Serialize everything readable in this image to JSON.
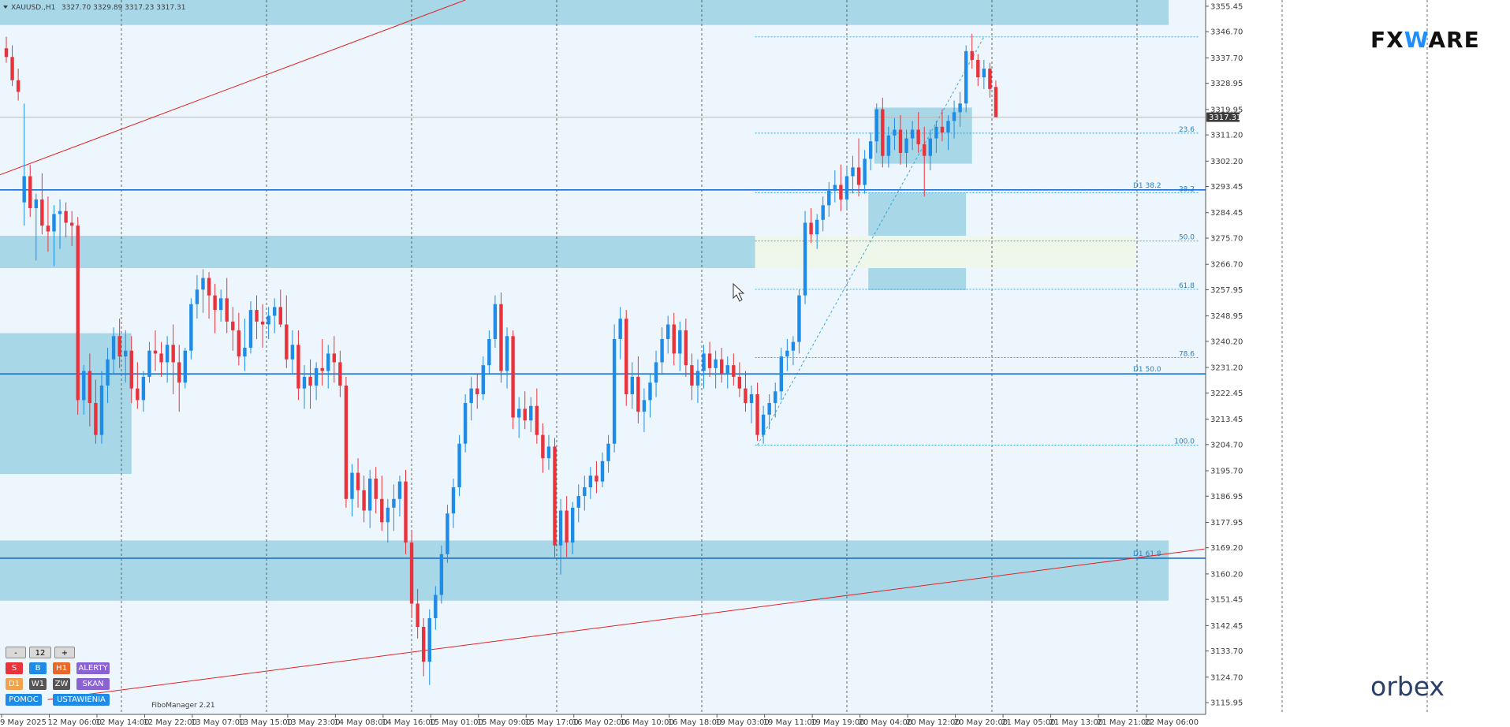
{
  "header": {
    "symbol": "XAUUSD.,H1",
    "ohlc": "3327.70 3329.89 3317.23 3317.31"
  },
  "colors": {
    "background": "#eef6fd",
    "zone": "#a8d7e8",
    "zone_light": "#eef7ea",
    "bull": "#1e8ce6",
    "bear": "#e8323c",
    "level": "#1a6fd0",
    "trend": "#e32222",
    "grid": "#444444"
  },
  "icons": {
    "collapse": "triangle-down-icon",
    "cursor": "mouse-cursor-icon"
  },
  "logos": {
    "fxware_pre": "FX",
    "fxware_w": "W",
    "fxware_post": "ARE",
    "orbex": "orbex"
  },
  "indicator": {
    "name": "FiboManager 2.21"
  },
  "panel": {
    "minus": "-",
    "period_value": "12",
    "plus": "+",
    "row1": [
      {
        "label": "S",
        "color": "#e8323c"
      },
      {
        "label": "B",
        "color": "#1e8ce6"
      },
      {
        "label": "H1",
        "color": "#e8682a"
      },
      {
        "label": "ALERTY",
        "color": "#8a63d2"
      }
    ],
    "row2": [
      {
        "label": "D1",
        "color": "#f2a24a"
      },
      {
        "label": "W1",
        "color": "#555555"
      },
      {
        "label": "ZW",
        "color": "#555555"
      },
      {
        "label": "SKAN",
        "color": "#8a63d2"
      }
    ],
    "row3": [
      {
        "label": "POMOC",
        "color": "#1e8ce6"
      },
      {
        "label": "USTAWIENIA",
        "color": "#1e8ce6"
      }
    ]
  },
  "chart_data": {
    "type": "candlestick",
    "ylim": [
      3111.9,
      3357.6
    ],
    "y_ticks": [
      "3355.45",
      "3346.70",
      "3337.70",
      "3328.95",
      "3319.95",
      "3311.20",
      "3302.20",
      "3293.45",
      "3284.45",
      "3275.70",
      "3266.70",
      "3257.95",
      "3248.95",
      "3240.20",
      "3231.20",
      "3222.45",
      "3213.45",
      "3204.70",
      "3195.70",
      "3186.95",
      "3177.95",
      "3169.20",
      "3160.20",
      "3151.45",
      "3142.45",
      "3133.70",
      "3124.70",
      "3115.95"
    ],
    "current_price": "3317.31",
    "x_ticks": [
      "9 May 2025",
      "12 May 06:00",
      "12 May 14:00",
      "12 May 22:00",
      "13 May 07:00",
      "13 May 15:00",
      "13 May 23:00",
      "14 May 08:00",
      "14 May 16:00",
      "15 May 01:00",
      "15 May 09:00",
      "15 May 17:00",
      "16 May 02:00",
      "16 May 10:00",
      "16 May 18:00",
      "19 May 03:00",
      "19 May 11:00",
      "19 May 19:00",
      "20 May 04:00",
      "20 May 12:00",
      "20 May 20:00",
      "21 May 05:00",
      "21 May 13:00",
      "21 May 21:00",
      "22 May 06:00"
    ],
    "x_tick_index": [
      0,
      8,
      16,
      24,
      32,
      40,
      48,
      56,
      64,
      72,
      80,
      88,
      96,
      104,
      112,
      120,
      128,
      136,
      144,
      152,
      160,
      168,
      176,
      184,
      192
    ],
    "candles": [
      [
        3341,
        3345,
        3336,
        3338
      ],
      [
        3338,
        3342,
        3328,
        3330
      ],
      [
        3330,
        3334,
        3323,
        3326
      ],
      [
        3288,
        3322,
        3280,
        3297
      ],
      [
        3297,
        3301,
        3283,
        3286
      ],
      [
        3286,
        3291,
        3268,
        3289
      ],
      [
        3289,
        3298,
        3277,
        3280
      ],
      [
        3280,
        3290,
        3271,
        3278
      ],
      [
        3278,
        3287,
        3266,
        3284
      ],
      [
        3284,
        3289,
        3272,
        3285
      ],
      [
        3285,
        3288,
        3276,
        3281
      ],
      [
        3281,
        3285,
        3273,
        3280
      ],
      [
        3280,
        3283,
        3215,
        3220
      ],
      [
        3220,
        3232,
        3215,
        3230
      ],
      [
        3230,
        3236,
        3211,
        3219
      ],
      [
        3219,
        3227,
        3205,
        3208
      ],
      [
        3208,
        3230,
        3205,
        3225
      ],
      [
        3225,
        3238,
        3219,
        3234
      ],
      [
        3234,
        3245,
        3229,
        3242
      ],
      [
        3242,
        3248,
        3231,
        3235
      ],
      [
        3235,
        3244,
        3226,
        3237
      ],
      [
        3237,
        3242,
        3219,
        3224
      ],
      [
        3224,
        3233,
        3217,
        3220
      ],
      [
        3220,
        3230,
        3216,
        3228
      ],
      [
        3228,
        3240,
        3226,
        3237
      ],
      [
        3237,
        3244,
        3230,
        3236
      ],
      [
        3236,
        3240,
        3228,
        3233
      ],
      [
        3233,
        3242,
        3226,
        3239
      ],
      [
        3239,
        3246,
        3222,
        3233
      ],
      [
        3233,
        3239,
        3216,
        3226
      ],
      [
        3226,
        3238,
        3224,
        3237
      ],
      [
        3237,
        3255,
        3234,
        3253
      ],
      [
        3253,
        3263,
        3248,
        3258
      ],
      [
        3258,
        3265,
        3250,
        3262
      ],
      [
        3262,
        3264,
        3248,
        3256
      ],
      [
        3256,
        3260,
        3243,
        3251
      ],
      [
        3251,
        3258,
        3247,
        3255
      ],
      [
        3255,
        3262,
        3243,
        3247
      ],
      [
        3247,
        3252,
        3237,
        3244
      ],
      [
        3244,
        3250,
        3232,
        3235
      ],
      [
        3235,
        3248,
        3230,
        3238
      ],
      [
        3238,
        3254,
        3236,
        3251
      ],
      [
        3251,
        3256,
        3241,
        3247
      ],
      [
        3247,
        3253,
        3238,
        3246
      ],
      [
        3246,
        3252,
        3241,
        3249
      ],
      [
        3249,
        3255,
        3243,
        3252
      ],
      [
        3252,
        3258,
        3245,
        3246
      ],
      [
        3246,
        3256,
        3231,
        3234
      ],
      [
        3234,
        3244,
        3229,
        3239
      ],
      [
        3239,
        3244,
        3220,
        3224
      ],
      [
        3224,
        3232,
        3217,
        3228
      ],
      [
        3228,
        3234,
        3217,
        3225
      ],
      [
        3225,
        3233,
        3220,
        3231
      ],
      [
        3231,
        3241,
        3225,
        3230
      ],
      [
        3230,
        3239,
        3224,
        3236
      ],
      [
        3236,
        3242,
        3226,
        3233
      ],
      [
        3233,
        3237,
        3221,
        3225
      ],
      [
        3225,
        3228,
        3183,
        3186
      ],
      [
        3186,
        3198,
        3180,
        3195
      ],
      [
        3195,
        3200,
        3183,
        3189
      ],
      [
        3189,
        3194,
        3178,
        3182
      ],
      [
        3182,
        3196,
        3176,
        3193
      ],
      [
        3193,
        3197,
        3181,
        3186
      ],
      [
        3186,
        3194,
        3175,
        3178
      ],
      [
        3178,
        3186,
        3171,
        3183
      ],
      [
        3183,
        3191,
        3175,
        3186
      ],
      [
        3186,
        3194,
        3180,
        3192
      ],
      [
        3192,
        3196,
        3167,
        3171
      ],
      [
        3171,
        3175,
        3145,
        3150
      ],
      [
        3150,
        3155,
        3138,
        3142
      ],
      [
        3142,
        3145,
        3125,
        3130
      ],
      [
        3130,
        3148,
        3122,
        3145
      ],
      [
        3145,
        3156,
        3141,
        3153
      ],
      [
        3153,
        3170,
        3150,
        3167
      ],
      [
        3167,
        3184,
        3164,
        3181
      ],
      [
        3181,
        3193,
        3176,
        3190
      ],
      [
        3190,
        3208,
        3187,
        3205
      ],
      [
        3205,
        3222,
        3202,
        3219
      ],
      [
        3219,
        3228,
        3213,
        3224
      ],
      [
        3224,
        3229,
        3217,
        3222
      ],
      [
        3222,
        3235,
        3220,
        3232
      ],
      [
        3232,
        3244,
        3229,
        3241
      ],
      [
        3241,
        3256,
        3238,
        3253
      ],
      [
        3253,
        3257,
        3226,
        3230
      ],
      [
        3230,
        3245,
        3224,
        3242
      ],
      [
        3242,
        3244,
        3210,
        3214
      ],
      [
        3214,
        3221,
        3207,
        3217
      ],
      [
        3217,
        3223,
        3210,
        3213
      ],
      [
        3213,
        3221,
        3209,
        3218
      ],
      [
        3218,
        3224,
        3205,
        3208
      ],
      [
        3208,
        3212,
        3195,
        3200
      ],
      [
        3200,
        3208,
        3196,
        3204
      ],
      [
        3204,
        3207,
        3166,
        3170
      ],
      [
        3170,
        3186,
        3160,
        3182
      ],
      [
        3182,
        3187,
        3166,
        3171
      ],
      [
        3171,
        3185,
        3167,
        3183
      ],
      [
        3183,
        3191,
        3178,
        3187
      ],
      [
        3187,
        3194,
        3182,
        3190
      ],
      [
        3190,
        3197,
        3186,
        3194
      ],
      [
        3194,
        3199,
        3188,
        3192
      ],
      [
        3192,
        3202,
        3190,
        3199
      ],
      [
        3199,
        3208,
        3195,
        3205
      ],
      [
        3205,
        3246,
        3202,
        3241
      ],
      [
        3241,
        3252,
        3234,
        3248
      ],
      [
        3248,
        3251,
        3218,
        3222
      ],
      [
        3222,
        3233,
        3217,
        3228
      ],
      [
        3228,
        3235,
        3212,
        3216
      ],
      [
        3216,
        3224,
        3209,
        3220
      ],
      [
        3220,
        3229,
        3214,
        3226
      ],
      [
        3226,
        3237,
        3221,
        3233
      ],
      [
        3233,
        3245,
        3229,
        3241
      ],
      [
        3241,
        3249,
        3236,
        3246
      ],
      [
        3246,
        3250,
        3232,
        3236
      ],
      [
        3236,
        3247,
        3230,
        3244
      ],
      [
        3244,
        3248,
        3228,
        3232
      ],
      [
        3232,
        3236,
        3220,
        3225
      ],
      [
        3225,
        3234,
        3219,
        3230
      ],
      [
        3230,
        3239,
        3224,
        3236
      ],
      [
        3236,
        3240,
        3228,
        3231
      ],
      [
        3231,
        3237,
        3224,
        3234
      ],
      [
        3234,
        3238,
        3226,
        3229
      ],
      [
        3229,
        3235,
        3224,
        3232
      ],
      [
        3232,
        3236,
        3225,
        3228
      ],
      [
        3228,
        3233,
        3221,
        3224
      ],
      [
        3224,
        3230,
        3216,
        3219
      ],
      [
        3219,
        3225,
        3212,
        3222
      ],
      [
        3222,
        3226,
        3206,
        3208
      ],
      [
        3208,
        3218,
        3205,
        3215
      ],
      [
        3215,
        3222,
        3210,
        3219
      ],
      [
        3219,
        3226,
        3214,
        3223
      ],
      [
        3223,
        3238,
        3220,
        3235
      ],
      [
        3235,
        3241,
        3230,
        3237
      ],
      [
        3237,
        3242,
        3232,
        3240
      ],
      [
        3240,
        3258,
        3236,
        3256
      ],
      [
        3256,
        3285,
        3253,
        3281
      ],
      [
        3281,
        3286,
        3274,
        3277
      ],
      [
        3277,
        3284,
        3272,
        3282
      ],
      [
        3282,
        3290,
        3278,
        3287
      ],
      [
        3287,
        3295,
        3283,
        3292
      ],
      [
        3292,
        3299,
        3288,
        3294
      ],
      [
        3294,
        3301,
        3285,
        3289
      ],
      [
        3289,
        3300,
        3286,
        3297
      ],
      [
        3297,
        3304,
        3291,
        3300
      ],
      [
        3300,
        3310,
        3290,
        3294
      ],
      [
        3294,
        3306,
        3291,
        3303
      ],
      [
        3303,
        3312,
        3299,
        3309
      ],
      [
        3309,
        3322,
        3305,
        3320
      ],
      [
        3320,
        3324,
        3300,
        3304
      ],
      [
        3304,
        3314,
        3300,
        3311
      ],
      [
        3311,
        3317,
        3306,
        3313
      ],
      [
        3313,
        3318,
        3301,
        3305
      ],
      [
        3305,
        3313,
        3300,
        3310
      ],
      [
        3310,
        3316,
        3306,
        3313
      ],
      [
        3313,
        3319,
        3305,
        3308
      ],
      [
        3308,
        3314,
        3290,
        3304
      ],
      [
        3304,
        3313,
        3299,
        3310
      ],
      [
        3310,
        3316,
        3305,
        3314
      ],
      [
        3314,
        3320,
        3309,
        3312
      ],
      [
        3312,
        3318,
        3306,
        3316
      ],
      [
        3316,
        3323,
        3310,
        3319
      ],
      [
        3319,
        3326,
        3314,
        3322
      ],
      [
        3322,
        3342,
        3319,
        3340
      ],
      [
        3340,
        3346,
        3334,
        3337
      ],
      [
        3337,
        3339,
        3328,
        3331
      ],
      [
        3331,
        3337,
        3327,
        3334
      ],
      [
        3334,
        3336,
        3324,
        3327
      ],
      [
        3327.7,
        3329.89,
        3317.23,
        3317.31
      ]
    ],
    "horizontal_levels": [
      {
        "price": 3292.3,
        "label": "D1 38.2"
      },
      {
        "price": 3229.0,
        "label": "D1 50.0"
      },
      {
        "price": 3165.6,
        "label": "D1 61.8"
      }
    ],
    "zones": [
      {
        "x": [
          0,
          195
        ],
        "y": [
          3349.0,
          3357.6
        ]
      },
      {
        "x": [
          0,
          126
        ],
        "y": [
          3265.4,
          3276.5
        ]
      },
      {
        "x": [
          0,
          21
        ],
        "y": [
          3194.6,
          3243.0
        ]
      },
      {
        "x": [
          0,
          195
        ],
        "y": [
          3151.0,
          3171.7
        ]
      },
      {
        "x": [
          145,
          161
        ],
        "y": [
          3257.8,
          3291.4
        ]
      },
      {
        "x": [
          146,
          162
        ],
        "y": [
          3301.3,
          3320.6
        ]
      }
    ],
    "zone_white": {
      "x": [
        126,
        195
      ],
      "y": [
        3265.4,
        3276.5
      ],
      "label_gap": [
        162,
        166
      ]
    },
    "fibonacci": {
      "x_start": 126,
      "x_end": 195,
      "low": 3204.5,
      "high": 3344.9,
      "levels": [
        {
          "label": "23.6",
          "price": 3311.8
        },
        {
          "label": "38.2",
          "price": 3291.3
        },
        {
          "label": "50.0",
          "price": 3274.7
        },
        {
          "label": "61.8",
          "price": 3258.1
        },
        {
          "label": "78.6",
          "price": 3234.6
        },
        {
          "label": "100.0",
          "price": 3204.5
        }
      ]
    },
    "trendlines": [
      {
        "from": [
          0,
          3297.5
        ],
        "to": [
          77,
          3357.6
        ]
      },
      {
        "from": [
          8,
          3117.0
        ],
        "to": [
          201,
          3168.8
        ]
      }
    ]
  }
}
